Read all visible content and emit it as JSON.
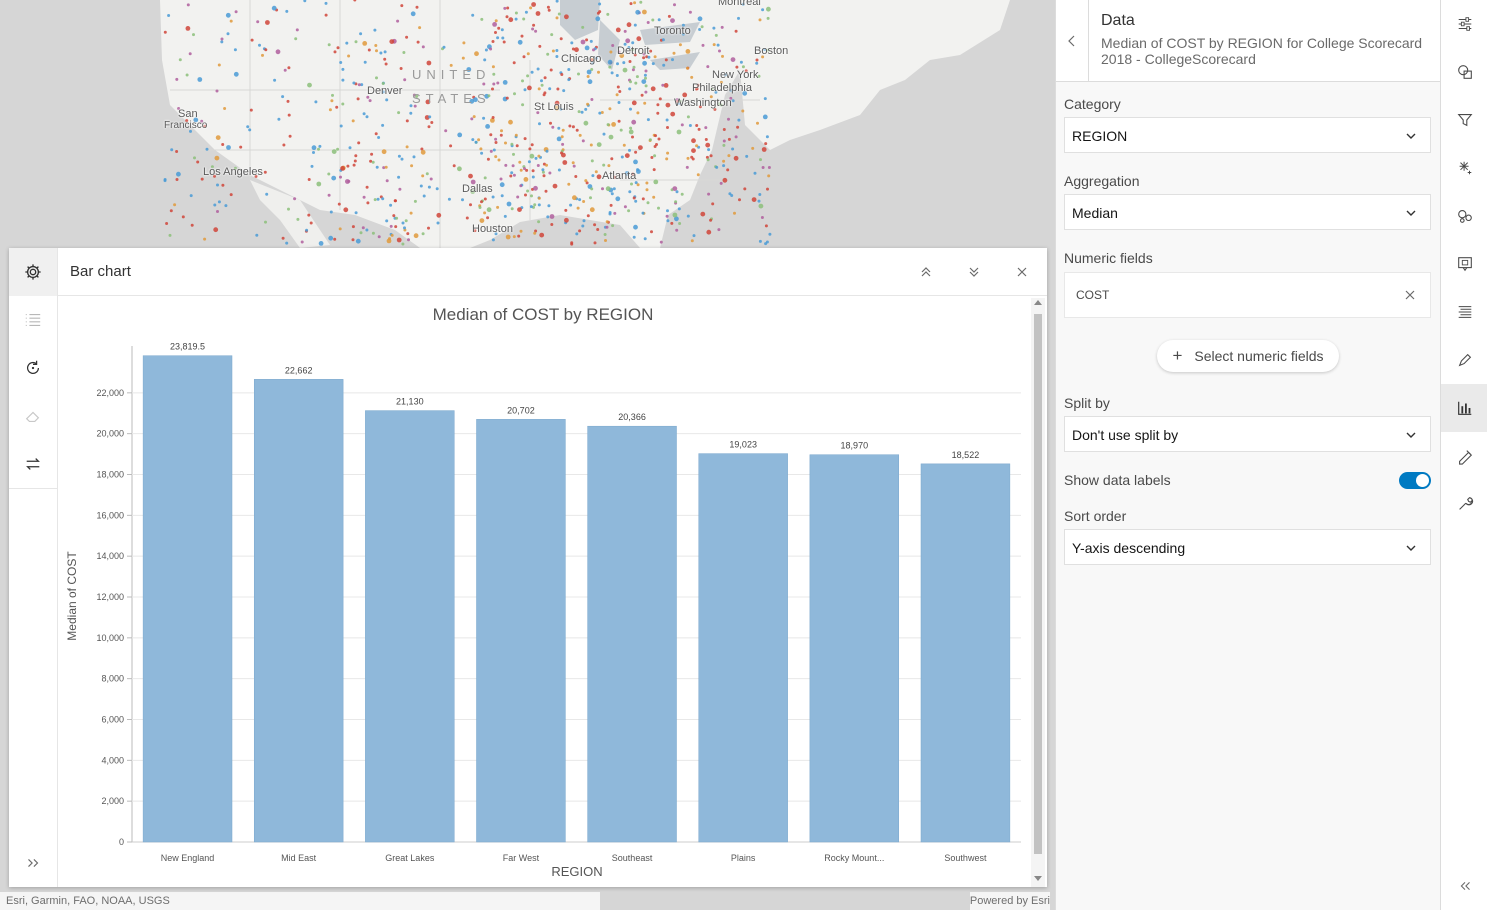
{
  "map": {
    "labels": {
      "montreal": "Montreal",
      "toronto": "Toronto",
      "detroit": "Detroit",
      "chicago": "Chicago",
      "boston": "Boston",
      "new_york": "New York",
      "philadelphia": "Philadelphia",
      "washington": "Washington",
      "denver": "Denver",
      "st_louis": "St Louis",
      "san_francisco_1": "San",
      "san_francisco_2": "Francisco",
      "los_angeles": "Los Angeles",
      "dallas": "Dallas",
      "houston": "Houston",
      "atlanta": "Atlanta",
      "country_1": "UNITED",
      "country_2": "STATES"
    },
    "attribution": "Esri, Garmin, FAO, NOAA, USGS",
    "powered_by": "Powered by Esri"
  },
  "chart_window": {
    "title": "Bar chart",
    "rail_icons": [
      "gear-icon",
      "list-icon",
      "refresh-icon",
      "eraser-icon",
      "swap-icon",
      "expand-icon"
    ],
    "header_icons": [
      "collapse-up-icon",
      "collapse-down-icon",
      "close-icon"
    ]
  },
  "chart_data": {
    "type": "bar",
    "title": "Median of COST by REGION",
    "xlabel": "REGION",
    "ylabel": "Median of COST",
    "categories": [
      "New England",
      "Mid East",
      "Great Lakes",
      "Far West",
      "Southeast",
      "Plains",
      "Rocky Mount...",
      "Southwest"
    ],
    "values": [
      23819.5,
      22662,
      21130,
      20702,
      20366,
      19023,
      18970,
      18522
    ],
    "value_labels": [
      "23,819.5",
      "22,662",
      "21,130",
      "20,702",
      "20,366",
      "19,023",
      "18,970",
      "18,522"
    ],
    "ylim": [
      0,
      24000
    ],
    "yticks": [
      0,
      2000,
      4000,
      6000,
      8000,
      10000,
      12000,
      14000,
      16000,
      18000,
      20000,
      22000
    ],
    "ytick_labels": [
      "0",
      "2,000",
      "4,000",
      "6,000",
      "8,000",
      "10,000",
      "12,000",
      "14,000",
      "16,000",
      "18,000",
      "20,000",
      "22,000"
    ],
    "grid": true,
    "bar_color": "#8fb8da"
  },
  "side_panel": {
    "heading": "Data",
    "subtitle": "Median of COST by REGION for College Scorecard 2018 - CollegeScorecard",
    "category_label": "Category",
    "category_value": "REGION",
    "aggregation_label": "Aggregation",
    "aggregation_value": "Median",
    "numeric_label": "Numeric fields",
    "numeric_chip": "COST",
    "select_numeric_button": "Select numeric fields",
    "split_label": "Split by",
    "split_value": "Don't use split by",
    "show_labels_label": "Show data labels",
    "show_labels_on": true,
    "sort_label": "Sort order",
    "sort_value": "Y-axis descending"
  },
  "tool_rail": {
    "icons": [
      "sliders-icon",
      "shapes-icon",
      "filter-icon",
      "sparkle-icon",
      "cluster-icon",
      "popup-icon",
      "legend-icon",
      "pencil-icon",
      "chart-icon",
      "label-icon",
      "wrench-icon",
      "collapse-panel-icon"
    ],
    "active": "chart-icon"
  },
  "colors": {
    "accent": "#007ac2",
    "bar": "#8fb8da"
  }
}
